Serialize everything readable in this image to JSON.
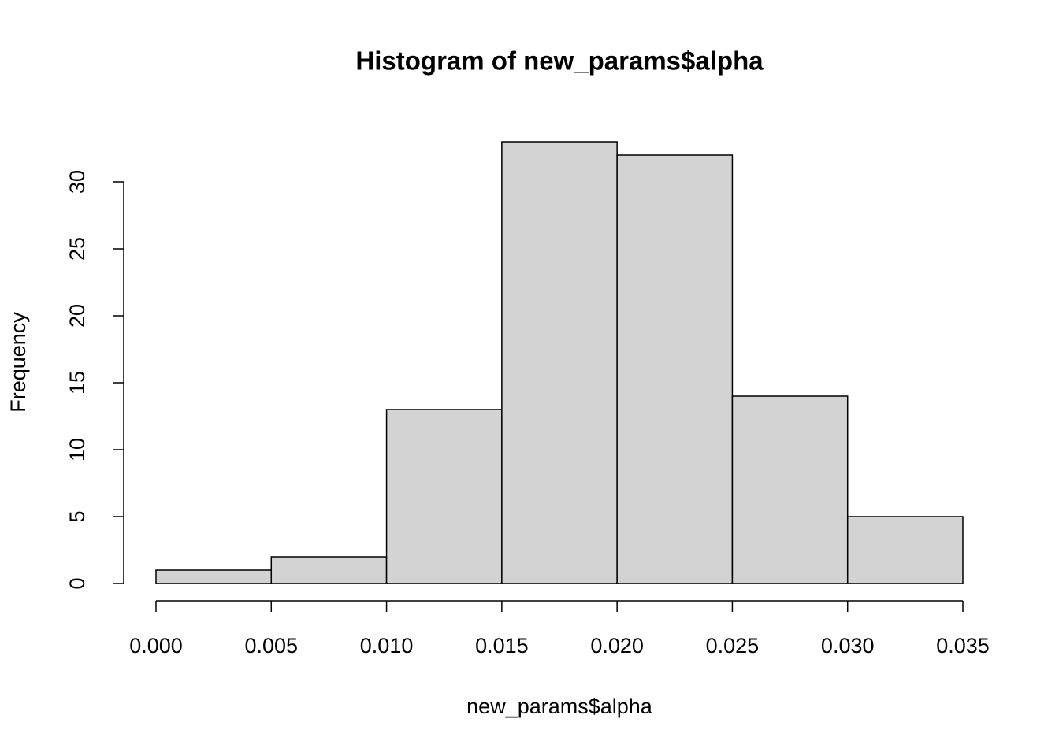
{
  "chart_data": {
    "type": "histogram",
    "title": "Histogram of new_params$alpha",
    "x_label": "new_params$alpha",
    "y_label": "Frequency",
    "bins": [
      0,
      0.005,
      0.01,
      0.015,
      0.02,
      0.025,
      0.03,
      0.035
    ],
    "counts": [
      1,
      2,
      13,
      33,
      32,
      14,
      5
    ],
    "color": "#d3d3d3",
    "xlim": [
      0,
      0.035
    ],
    "xticks": [
      {
        "value": 0,
        "label": "0.000"
      },
      0.005,
      {
        "value": 0.01,
        "label": "0.010"
      },
      0.015,
      {
        "value": 0.02,
        "label": "0.020"
      },
      0.025,
      {
        "value": 0.03,
        "label": "0.030"
      },
      0.035
    ],
    "ylim": [
      0,
      33
    ],
    "yticks": [
      0,
      5,
      10,
      15,
      20,
      25,
      30
    ],
    "grid": false
  }
}
